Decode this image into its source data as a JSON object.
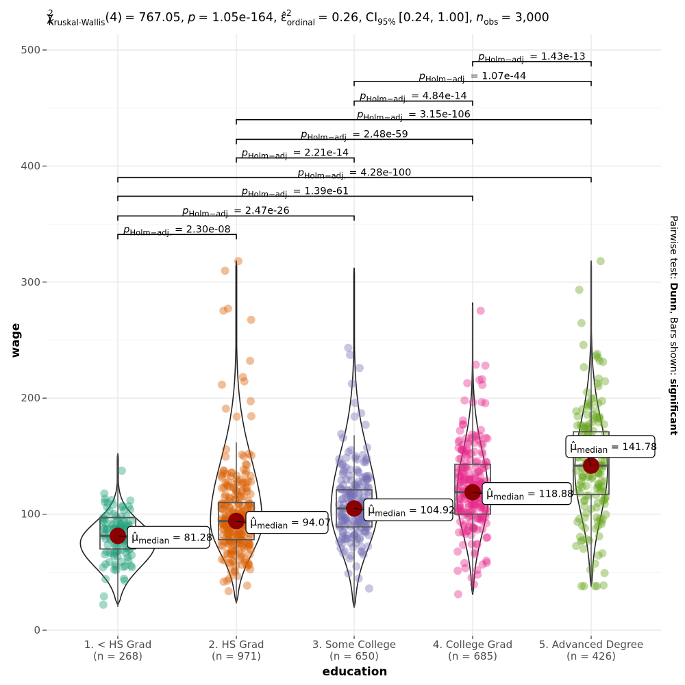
{
  "subtitle": {
    "stat_symbol": "χ",
    "stat_sup": "2",
    "stat_sub": "Kruskal-Wallis",
    "df": "(4)",
    "statistic": "= 767.05,",
    "p_symbol": "p",
    "p_value": "= 1.05e-164,",
    "effsize_symbol": "ε̂",
    "effsize_sup": "2",
    "effsize_sub": "ordinal",
    "effsize_value": "= 0.26,",
    "ci_label": "CI",
    "ci_sub": "95%",
    "ci_value": "[0.24, 1.00],",
    "n_symbol": "n",
    "n_sub": "obs",
    "n_value": "= 3,000"
  },
  "caption": {
    "prefix": "Pairwise test: ",
    "test": "Dunn",
    "middle": ", Bars shown: ",
    "shown": "significant"
  },
  "chart_data": {
    "type": "violin-box-scatter",
    "xlabel": "education",
    "ylabel": "wage",
    "ylim": [
      0,
      520
    ],
    "yticks": [
      0,
      100,
      200,
      300,
      400,
      500
    ],
    "categories": [
      {
        "label": "1. < HS Grad",
        "n_label": "(n = 268)",
        "color": "#1B9E77",
        "median": 81.28,
        "median_label": "= 81.28",
        "q1": 70,
        "q3": 97,
        "whisker_low": 20,
        "whisker_high": 152,
        "vmin": 22,
        "vmax": 152,
        "vmode": 75,
        "vwidth": 0.55
      },
      {
        "label": "2. HS Grad",
        "n_label": "(n = 971)",
        "color": "#D95F02",
        "median": 94.07,
        "median_label": "= 94.07",
        "q1": 78,
        "q3": 110,
        "whisker_low": 23,
        "whisker_high": 162,
        "vmin": 24,
        "vmax": 318,
        "vmode": 93,
        "vwidth": 0.38
      },
      {
        "label": "3. Some College",
        "n_label": "(n = 650)",
        "color": "#7570B3",
        "median": 104.92,
        "median_label": "= 104.92",
        "q1": 89,
        "q3": 121,
        "whisker_low": 20,
        "whisker_high": 168,
        "vmin": 20,
        "vmax": 312,
        "vmode": 103,
        "vwidth": 0.34
      },
      {
        "label": "4. College Grad",
        "n_label": "(n = 685)",
        "color": "#E7298A",
        "median": 118.88,
        "median_label": "= 118.88",
        "q1": 100,
        "q3": 143,
        "whisker_low": 32,
        "whisker_high": 280,
        "vmin": 31,
        "vmax": 282,
        "vmode": 116,
        "vwidth": 0.23
      },
      {
        "label": "5. Advanced Degree",
        "n_label": "(n = 426)",
        "color": "#66A61E",
        "median": 141.78,
        "median_label": "= 141.78",
        "q1": 117,
        "q3": 171,
        "whisker_low": 38,
        "whisker_high": 318,
        "vmin": 38,
        "vmax": 318,
        "vmode": 138,
        "vwidth": 0.24
      }
    ],
    "median_symbol": "μ̂",
    "median_sub": "median",
    "pairwise": [
      {
        "from": 1,
        "to": 2,
        "y": 341,
        "label": "= 2.30e-08"
      },
      {
        "from": 1,
        "to": 3,
        "y": 357,
        "label": "= 2.47e-26"
      },
      {
        "from": 1,
        "to": 4,
        "y": 374,
        "label": "= 1.39e-61"
      },
      {
        "from": 1,
        "to": 5,
        "y": 390,
        "label": "= 4.28e-100"
      },
      {
        "from": 2,
        "to": 3,
        "y": 407,
        "label": "= 2.21e-14"
      },
      {
        "from": 2,
        "to": 4,
        "y": 423,
        "label": "= 2.48e-59"
      },
      {
        "from": 2,
        "to": 5,
        "y": 440,
        "label": "= 3.15e-106"
      },
      {
        "from": 3,
        "to": 4,
        "y": 456,
        "label": "= 4.84e-14"
      },
      {
        "from": 3,
        "to": 5,
        "y": 473,
        "label": "= 1.07e-44"
      },
      {
        "from": 4,
        "to": 5,
        "y": 490,
        "label": "= 1.43e-13"
      }
    ],
    "pairwise_p_symbol": "p",
    "pairwise_p_sub": "Holm−adj."
  }
}
